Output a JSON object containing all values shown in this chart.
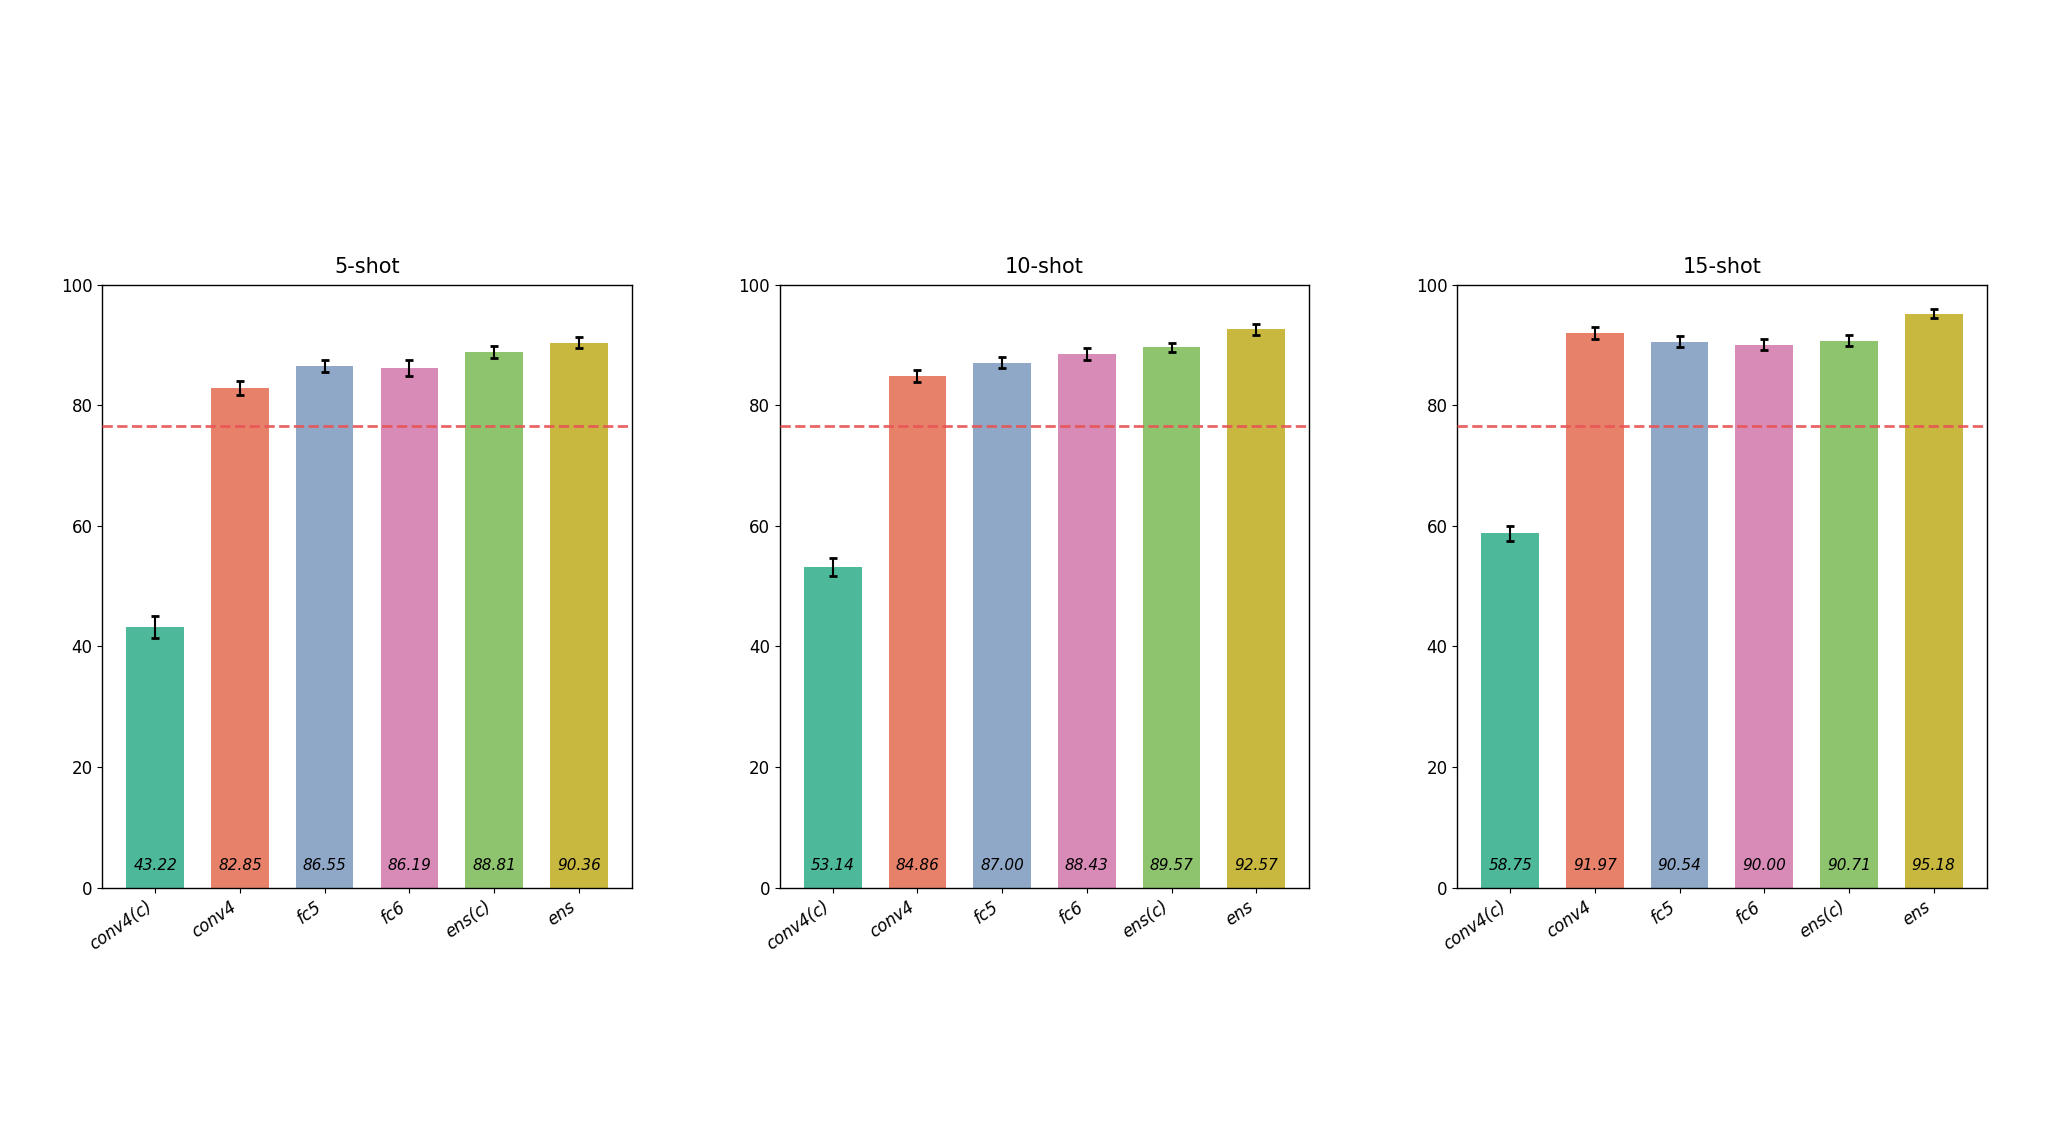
{
  "subplots": [
    {
      "title": "5-shot",
      "categories": [
        "conv4(c)",
        "conv4",
        "fc5",
        "fc6",
        "ens(c)",
        "ens"
      ],
      "values": [
        43.22,
        82.85,
        86.55,
        86.19,
        88.81,
        90.36
      ],
      "errors": [
        1.8,
        1.2,
        1.0,
        1.3,
        1.0,
        0.9
      ],
      "baseline": 76.5
    },
    {
      "title": "10-shot",
      "categories": [
        "conv4(c)",
        "conv4",
        "fc5",
        "fc6",
        "ens(c)",
        "ens"
      ],
      "values": [
        53.14,
        84.86,
        87.0,
        88.43,
        89.57,
        92.57
      ],
      "errors": [
        1.5,
        1.0,
        0.9,
        1.0,
        0.8,
        0.9
      ],
      "baseline": 76.5
    },
    {
      "title": "15-shot",
      "categories": [
        "conv4(c)",
        "conv4",
        "fc5",
        "fc6",
        "ens(c)",
        "ens"
      ],
      "values": [
        58.75,
        91.97,
        90.54,
        90.0,
        90.71,
        95.18
      ],
      "errors": [
        1.2,
        1.0,
        0.9,
        0.9,
        0.9,
        0.7
      ],
      "baseline": 76.5
    }
  ],
  "bar_colors": [
    "#4db89a",
    "#e8816a",
    "#8fa8c8",
    "#d98bb8",
    "#8ec46e",
    "#c8b840"
  ],
  "baseline_color": "#e85555",
  "ylim": [
    0,
    100
  ],
  "yticks": [
    0,
    20,
    40,
    60,
    80,
    100
  ],
  "label_fontsize": 12,
  "title_fontsize": 15,
  "value_label_fontsize": 11,
  "tick_fontsize": 12,
  "background_color": "#ffffff",
  "fig_background": "#ffffff",
  "bar_width": 0.68
}
